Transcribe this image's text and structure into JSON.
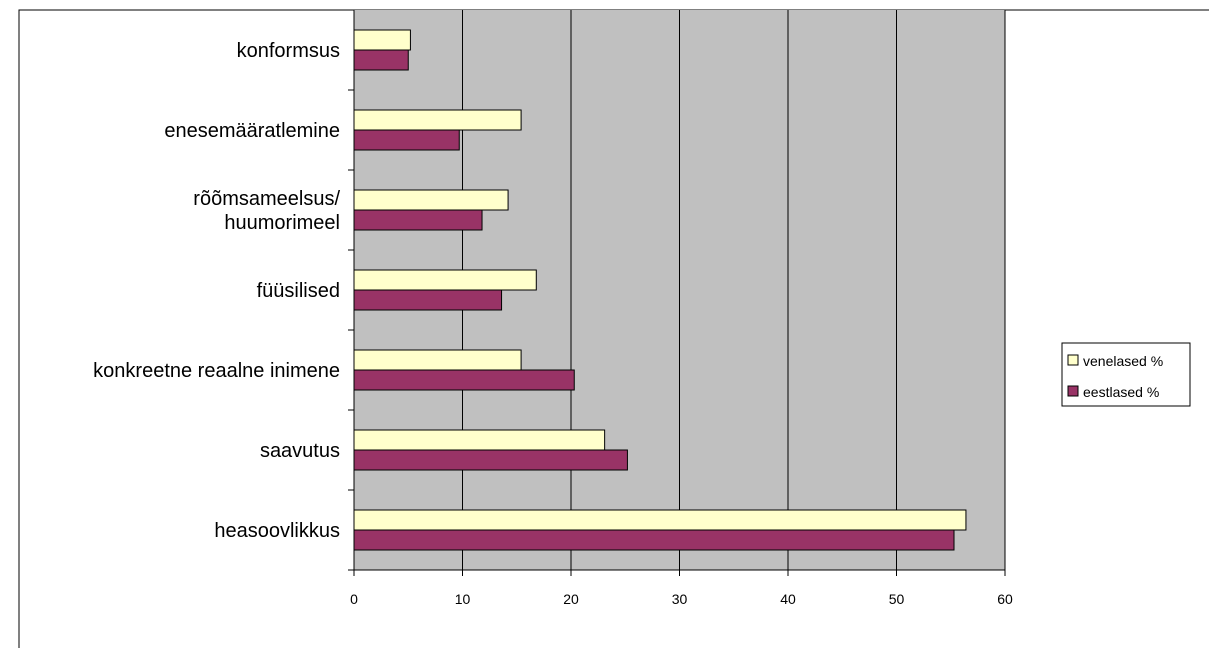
{
  "chart_data": {
    "type": "bar",
    "orientation": "horizontal",
    "categories": [
      [
        "konformsus"
      ],
      [
        "enesemääratlemine"
      ],
      [
        "rõõmsameelsus/",
        "huumorimeel"
      ],
      [
        "füüsilised"
      ],
      [
        "konkreetne reaalne inimene"
      ],
      [
        "saavutus"
      ],
      [
        "heasoovlikkus"
      ]
    ],
    "series": [
      {
        "name": "venelased %",
        "color": "#FFFFCC",
        "values": [
          5.2,
          15.4,
          14.2,
          16.8,
          15.4,
          23.1,
          56.4
        ]
      },
      {
        "name": "eestlased %",
        "color": "#993366",
        "values": [
          5.0,
          9.7,
          11.8,
          13.6,
          20.3,
          25.2,
          55.3
        ]
      }
    ],
    "xlim": [
      0,
      60
    ],
    "xticks": [
      0,
      10,
      20,
      30,
      40,
      50,
      60
    ],
    "plot_background": "#C0C0C0",
    "grid": true,
    "legend_position": "right"
  }
}
